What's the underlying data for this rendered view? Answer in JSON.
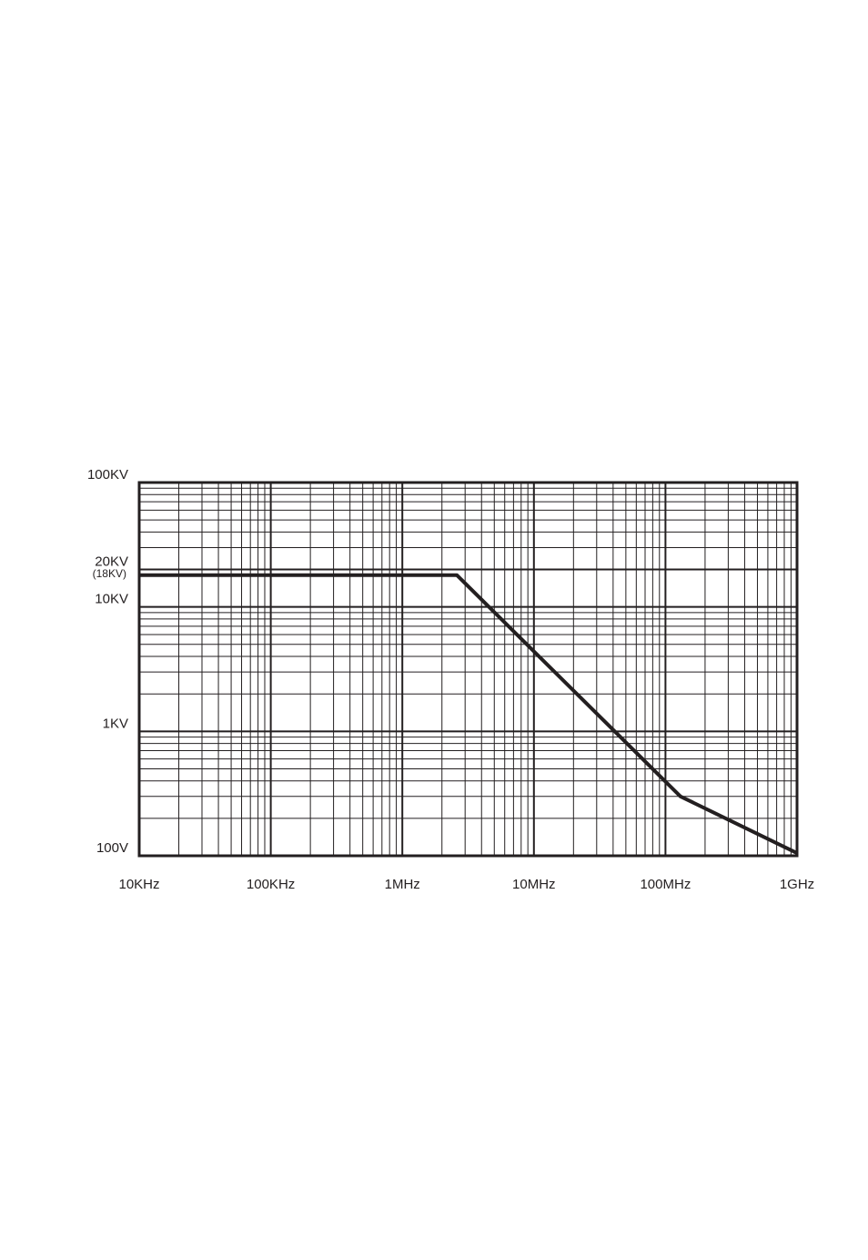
{
  "chart_data": {
    "type": "line",
    "x": [
      10000,
      2600000,
      130000000,
      1000000000
    ],
    "series": [
      {
        "color": "#231f20",
        "values": [
          18000,
          18000,
          300,
          105
        ]
      }
    ],
    "xlim": [
      10000,
      1000000000
    ],
    "ylim": [
      100,
      100000
    ],
    "xscale": "log",
    "yscale": "log",
    "grid": true,
    "minor_grid": true,
    "xticks": [
      {
        "value": 10000,
        "label": "10KHz"
      },
      {
        "value": 100000,
        "label": "100KHz"
      },
      {
        "value": 1000000,
        "label": "1MHz"
      },
      {
        "value": 10000000,
        "label": "10MHz"
      },
      {
        "value": 100000000,
        "label": "100MHz"
      },
      {
        "value": 1000000000,
        "label": "1GHz"
      }
    ],
    "yticks": [
      {
        "value": 100,
        "label": "100V"
      },
      {
        "value": 1000,
        "label": "1KV"
      },
      {
        "value": 10000,
        "label": "10KV"
      },
      {
        "value": 20000,
        "label": "20KV"
      },
      {
        "value": 100000,
        "label": "100KV"
      }
    ],
    "annotation": {
      "value": 18000,
      "label": "(18KV)"
    }
  }
}
